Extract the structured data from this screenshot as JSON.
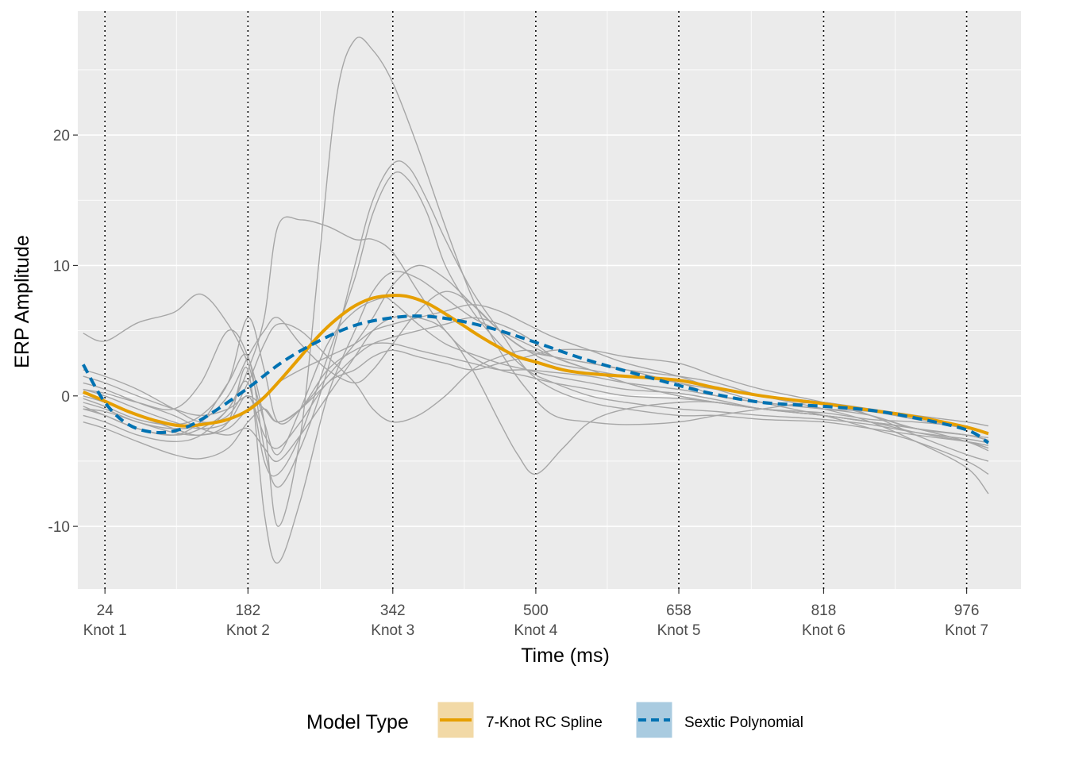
{
  "chart_data": {
    "type": "line",
    "title": "",
    "xlabel": "Time (ms)",
    "ylabel": "ERP Amplitude",
    "xlim": [
      -6,
      1036
    ],
    "ylim": [
      -14.8,
      29.5
    ],
    "grid": true,
    "y_ticks": [
      -10,
      0,
      10,
      20
    ],
    "y_tick_labels": [
      "-10",
      "0",
      "10",
      "20"
    ],
    "x_ticks": [
      24,
      182,
      342,
      500,
      658,
      818,
      976
    ],
    "x_tick_labels": [
      "24",
      "182",
      "342",
      "500",
      "658",
      "818",
      "976"
    ],
    "knot_labels": [
      "Knot 1",
      "Knot 2",
      "Knot 3",
      "Knot 4",
      "Knot 5",
      "Knot 6",
      "Knot 7"
    ],
    "knots": [
      24,
      182,
      342,
      500,
      658,
      818,
      976
    ],
    "legend": {
      "title": "Model Type",
      "position": "bottom",
      "entries": [
        "7-Knot RC Spline",
        "Sextic Polynomial"
      ]
    },
    "colors": {
      "spline": "#E69F00",
      "polynomial": "#0072B2",
      "raw": "#A6A6A6",
      "panel": "#EBEBEB",
      "grid": "#FFFFFF"
    },
    "series": [
      {
        "name": "7-Knot RC Spline",
        "style": "solid",
        "x": [
          0,
          24,
          50,
          80,
          110,
          140,
          160,
          182,
          200,
          220,
          240,
          260,
          280,
          300,
          320,
          342,
          360,
          380,
          400,
          420,
          440,
          460,
          480,
          500,
          530,
          560,
          600,
          658,
          700,
          750,
          818,
          870,
          920,
          976,
          1000
        ],
        "y": [
          0.3,
          -0.4,
          -1.2,
          -1.9,
          -2.3,
          -2.1,
          -1.8,
          -1.1,
          -0.1,
          1.4,
          3.0,
          4.6,
          5.9,
          6.9,
          7.5,
          7.7,
          7.6,
          7.1,
          6.3,
          5.4,
          4.5,
          3.7,
          3.0,
          2.6,
          2.0,
          1.7,
          1.5,
          1.2,
          0.6,
          0.0,
          -0.6,
          -1.1,
          -1.6,
          -2.4,
          -2.9
        ]
      },
      {
        "name": "Sextic Polynomial",
        "style": "dashed",
        "x": [
          0,
          24,
          50,
          80,
          110,
          140,
          182,
          220,
          260,
          300,
          342,
          380,
          420,
          460,
          500,
          550,
          600,
          658,
          700,
          750,
          818,
          870,
          920,
          976,
          1000
        ],
        "y": [
          2.4,
          -0.5,
          -2.2,
          -2.8,
          -2.5,
          -1.4,
          0.6,
          2.6,
          4.2,
          5.4,
          6.0,
          6.1,
          5.7,
          5.0,
          4.1,
          2.9,
          1.9,
          0.8,
          0.1,
          -0.5,
          -0.8,
          -1.1,
          -1.7,
          -2.6,
          -3.6
        ]
      }
    ],
    "individual_waveforms": [
      {
        "x": [
          0,
          24,
          60,
          100,
          130,
          160,
          182,
          200,
          215,
          240,
          270,
          300,
          330,
          342,
          370,
          400,
          430,
          460,
          490,
          520,
          560,
          600,
          658,
          700,
          750,
          818,
          870,
          920,
          976,
          1000
        ],
        "y": [
          4.8,
          4.2,
          5.6,
          6.4,
          7.8,
          5.5,
          2.5,
          -2.0,
          -4.5,
          -1.0,
          4.0,
          6.5,
          7.5,
          7.2,
          5.5,
          4.0,
          3.2,
          2.5,
          2.0,
          1.5,
          1.0,
          0.5,
          0.2,
          -0.3,
          -1.0,
          -1.5,
          -2.0,
          -2.5,
          -3.0,
          -3.4
        ]
      },
      {
        "x": [
          0,
          24,
          60,
          100,
          130,
          160,
          182,
          200,
          215,
          240,
          260,
          280,
          300,
          320,
          342,
          370,
          400,
          430,
          460,
          490,
          520,
          560,
          600,
          658,
          700,
          750,
          818,
          870,
          920,
          976,
          1000
        ],
        "y": [
          0.5,
          0.2,
          -0.5,
          -1.0,
          1.0,
          5.0,
          3.0,
          -2.0,
          -10.0,
          -3.0,
          10.0,
          23.0,
          27.3,
          26.5,
          24.0,
          19.0,
          13.0,
          7.5,
          3.5,
          0.5,
          -1.5,
          -2.0,
          -2.2,
          -2.0,
          -1.5,
          -1.0,
          -0.5,
          -1.5,
          -3.0,
          -4.5,
          -5.0
        ]
      },
      {
        "x": [
          0,
          24,
          60,
          100,
          130,
          160,
          182,
          200,
          215,
          240,
          270,
          300,
          320,
          342,
          370,
          400,
          430,
          460,
          490,
          520,
          560,
          600,
          658,
          700,
          750,
          818,
          870,
          920,
          976,
          1000
        ],
        "y": [
          -1.0,
          -1.5,
          -2.5,
          -3.0,
          -2.5,
          -1.0,
          2.0,
          6.0,
          13.0,
          13.5,
          13.0,
          12.0,
          12.0,
          11.0,
          8.0,
          5.0,
          3.0,
          2.0,
          1.5,
          1.0,
          0.5,
          0.0,
          -0.2,
          -0.5,
          -1.0,
          -1.3,
          -1.8,
          -2.0,
          -2.4,
          -2.8
        ]
      },
      {
        "x": [
          0,
          24,
          60,
          100,
          130,
          160,
          182,
          200,
          215,
          240,
          270,
          300,
          320,
          342,
          360,
          380,
          400,
          430,
          460,
          490,
          520,
          560,
          600,
          658,
          700,
          750,
          818,
          870,
          920,
          976,
          1000
        ],
        "y": [
          -0.5,
          -1.0,
          -2.0,
          -2.5,
          -2.0,
          1.0,
          3.0,
          -4.0,
          -7.0,
          -4.0,
          2.0,
          10.0,
          15.0,
          17.8,
          17.5,
          15.0,
          12.0,
          8.0,
          5.0,
          2.0,
          0.5,
          -0.5,
          -1.0,
          -1.5,
          -1.5,
          -1.8,
          -2.0,
          -2.5,
          -3.0,
          -3.5,
          -3.8
        ]
      },
      {
        "x": [
          0,
          24,
          60,
          100,
          130,
          160,
          182,
          200,
          215,
          240,
          270,
          300,
          320,
          342,
          360,
          380,
          400,
          430,
          460,
          490,
          520,
          560,
          600,
          658,
          700,
          750,
          818,
          870,
          920,
          976,
          1000
        ],
        "y": [
          -1.5,
          -2.0,
          -3.0,
          -3.5,
          -3.0,
          -1.0,
          1.0,
          -5.0,
          -6.0,
          -3.0,
          3.0,
          9.0,
          14.0,
          17.0,
          16.5,
          14.0,
          10.0,
          6.5,
          4.0,
          2.0,
          1.0,
          0.0,
          -0.5,
          -1.0,
          -1.2,
          -1.5,
          -1.8,
          -2.2,
          -2.8,
          -3.3,
          -3.6
        ]
      },
      {
        "x": [
          0,
          24,
          60,
          100,
          130,
          160,
          182,
          200,
          215,
          240,
          270,
          300,
          320,
          342,
          370,
          400,
          430,
          460,
          490,
          520,
          560,
          600,
          658,
          700,
          750,
          818,
          870,
          920,
          976,
          1000
        ],
        "y": [
          0.0,
          -0.5,
          -1.5,
          -2.5,
          -3.0,
          -2.0,
          2.0,
          -9.0,
          -12.8,
          -8.0,
          0.0,
          5.0,
          8.0,
          9.5,
          9.0,
          7.5,
          6.0,
          5.0,
          4.0,
          3.0,
          2.0,
          1.0,
          0.0,
          -0.5,
          -1.0,
          -1.5,
          -2.0,
          -2.8,
          -3.5,
          -4.0
        ]
      },
      {
        "x": [
          0,
          24,
          60,
          100,
          130,
          160,
          182,
          200,
          215,
          240,
          270,
          300,
          320,
          342,
          370,
          400,
          430,
          460,
          490,
          520,
          560,
          600,
          658,
          700,
          750,
          818,
          870,
          920,
          976,
          1000
        ],
        "y": [
          -2.0,
          -2.5,
          -3.5,
          -4.5,
          -4.8,
          -4.0,
          -2.0,
          -1.0,
          -2.0,
          -1.0,
          1.0,
          3.0,
          4.0,
          4.5,
          5.0,
          5.5,
          6.0,
          5.5,
          4.5,
          3.0,
          2.0,
          1.0,
          0.0,
          -0.5,
          -1.0,
          -1.5,
          -2.0,
          -2.5,
          -3.5,
          -4.2
        ]
      },
      {
        "x": [
          0,
          24,
          60,
          100,
          130,
          160,
          182,
          200,
          215,
          240,
          270,
          300,
          320,
          342,
          370,
          400,
          430,
          460,
          490,
          520,
          560,
          600,
          658,
          700,
          750,
          818,
          870,
          920,
          976,
          1000
        ],
        "y": [
          2.0,
          1.5,
          0.5,
          -1.0,
          -2.0,
          -1.5,
          1.0,
          4.0,
          5.5,
          5.0,
          3.0,
          1.0,
          -1.0,
          -2.0,
          -1.5,
          0.0,
          2.0,
          3.0,
          3.5,
          3.0,
          2.5,
          2.0,
          1.0,
          0.5,
          0.0,
          -0.5,
          -1.0,
          -1.5,
          -2.0,
          -2.3
        ]
      },
      {
        "x": [
          0,
          24,
          60,
          100,
          130,
          160,
          182,
          200,
          215,
          240,
          270,
          300,
          320,
          342,
          370,
          400,
          430,
          460,
          480,
          500,
          530,
          560,
          600,
          658,
          700,
          750,
          818,
          870,
          920,
          976,
          1000
        ],
        "y": [
          1.0,
          0.5,
          -0.5,
          -1.5,
          -2.5,
          -3.0,
          -2.5,
          -4.0,
          -5.0,
          -3.0,
          0.0,
          3.0,
          5.0,
          6.0,
          6.0,
          5.0,
          2.0,
          -2.0,
          -4.5,
          -6.0,
          -4.0,
          -2.0,
          -1.0,
          -0.5,
          -0.5,
          -1.0,
          -1.5,
          -2.0,
          -2.5,
          -3.5,
          -4.0
        ]
      },
      {
        "x": [
          0,
          24,
          60,
          100,
          130,
          160,
          182,
          200,
          215,
          240,
          270,
          300,
          320,
          342,
          370,
          400,
          430,
          460,
          490,
          520,
          560,
          600,
          658,
          700,
          750,
          818,
          870,
          920,
          976,
          1000
        ],
        "y": [
          -1.0,
          -1.2,
          -2.0,
          -2.8,
          -3.0,
          -2.5,
          -1.0,
          0.0,
          1.0,
          2.0,
          3.0,
          4.0,
          5.0,
          5.5,
          6.0,
          6.5,
          7.0,
          6.5,
          5.5,
          4.5,
          3.5,
          2.5,
          1.5,
          0.5,
          -0.5,
          -1.5,
          -2.5,
          -3.5,
          -5.0,
          -6.0
        ]
      },
      {
        "x": [
          0,
          24,
          60,
          100,
          130,
          160,
          182,
          200,
          215,
          240,
          270,
          300,
          320,
          342,
          370,
          400,
          430,
          460,
          490,
          520,
          560,
          600,
          658,
          700,
          750,
          818,
          870,
          920,
          976,
          1000
        ],
        "y": [
          0.5,
          0.0,
          -1.0,
          -2.0,
          -2.5,
          -2.0,
          0.0,
          -3.0,
          -4.0,
          -2.0,
          1.0,
          2.0,
          3.0,
          3.5,
          3.0,
          2.5,
          2.0,
          2.5,
          3.0,
          3.5,
          3.5,
          3.0,
          2.5,
          1.5,
          0.5,
          -0.5,
          -1.5,
          -2.5,
          -3.0,
          -3.2
        ]
      },
      {
        "x": [
          0,
          24,
          60,
          100,
          130,
          160,
          182,
          200,
          215,
          240,
          270,
          300,
          320,
          342,
          370,
          400,
          430,
          460,
          490,
          520,
          560,
          600,
          658,
          700,
          750,
          818,
          870,
          920,
          976,
          1000
        ],
        "y": [
          -0.8,
          -1.5,
          -2.5,
          -3.0,
          -2.0,
          0.0,
          3.0,
          5.0,
          6.0,
          4.0,
          2.0,
          1.0,
          2.0,
          4.0,
          6.5,
          8.0,
          7.0,
          5.0,
          3.5,
          2.5,
          2.0,
          1.5,
          1.0,
          0.0,
          -0.5,
          -1.0,
          -1.5,
          -2.5,
          -3.0,
          -3.4
        ]
      },
      {
        "x": [
          0,
          24,
          60,
          100,
          130,
          160,
          182,
          200,
          215,
          240,
          270,
          300,
          320,
          342,
          370,
          400,
          430,
          460,
          490,
          520,
          560,
          600,
          658,
          700,
          750,
          818,
          870,
          920,
          976,
          1000
        ],
        "y": [
          1.5,
          1.0,
          0.0,
          -1.0,
          -1.5,
          -1.0,
          0.0,
          -1.0,
          -2.0,
          -1.0,
          1.5,
          4.0,
          6.0,
          8.5,
          10.0,
          9.0,
          7.0,
          5.0,
          3.5,
          3.0,
          2.5,
          2.0,
          1.5,
          1.0,
          0.0,
          -1.0,
          -2.0,
          -3.5,
          -5.5,
          -7.5
        ]
      },
      {
        "x": [
          0,
          24,
          60,
          100,
          130,
          160,
          182,
          200,
          215,
          240,
          270,
          300,
          320,
          342,
          370,
          400,
          430,
          460,
          490,
          520,
          560,
          600,
          658,
          700,
          750,
          818,
          870,
          920,
          976,
          1000
        ],
        "y": [
          -0.2,
          -0.8,
          -1.8,
          -2.2,
          -1.5,
          1.0,
          6.0,
          2.0,
          -2.0,
          -1.0,
          2.0,
          3.5,
          4.0,
          4.0,
          3.5,
          3.0,
          2.5,
          2.0,
          2.0,
          1.8,
          1.5,
          1.0,
          0.5,
          0.0,
          -0.5,
          -1.0,
          -1.2,
          -1.8,
          -2.5,
          -2.8
        ]
      }
    ]
  }
}
